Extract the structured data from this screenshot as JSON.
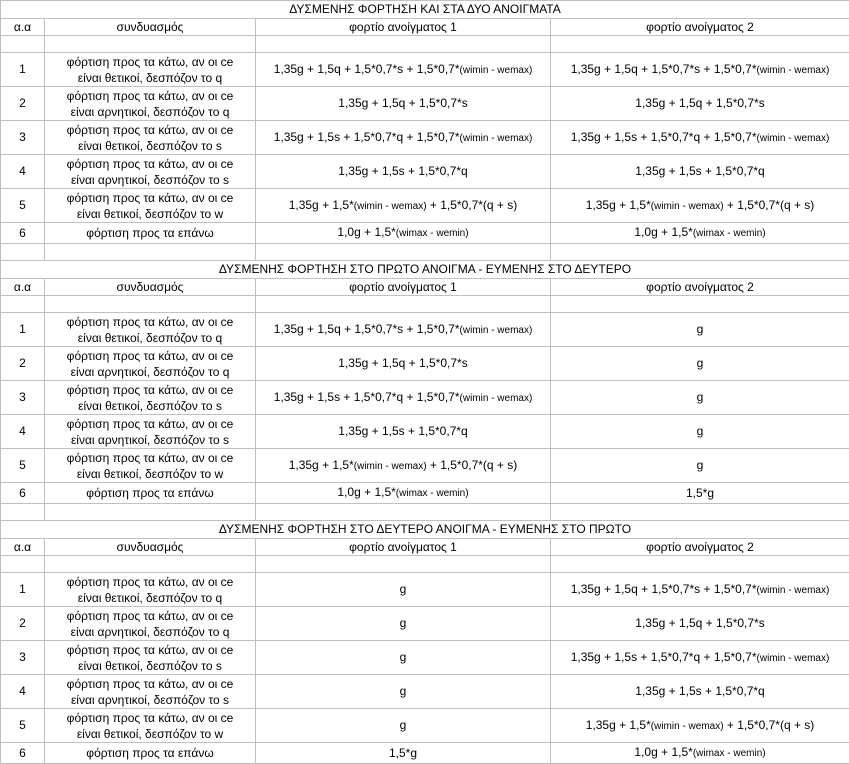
{
  "sections": [
    {
      "title": "ΔΥΣΜΕΝΗΣ ΦΟΡΤΗΣΗ ΚΑΙ ΣΤΑ ΔΥΟ ΑΝΟΙΓΜΑΤΑ",
      "headers": [
        "α.α",
        "συνδυασμός",
        "φορτίο ανοίγματος 1",
        "φορτίο ανοίγματος 2"
      ],
      "rows": [
        {
          "n": "1",
          "desc": "φόρτιση προς τα κάτω, αν οι ce\nείναι θετικοί, δεσπόζον το q",
          "f1": [
            {
              "t": "1,35g + 1,5q + 1,5*0,7*s + 1,5*0,7*"
            },
            {
              "t": "(wimin - wemax)",
              "small": true
            }
          ],
          "f2": [
            {
              "t": "1,35g + 1,5q + 1,5*0,7*s + 1,5*0,7*"
            },
            {
              "t": "(wimin - wemax)",
              "small": true
            }
          ]
        },
        {
          "n": "2",
          "desc": "φόρτιση προς τα κάτω, αν οι ce\nείναι αρνητικοί, δεσπόζον το q",
          "f1": [
            {
              "t": "1,35g + 1,5q + 1,5*0,7*s"
            }
          ],
          "f2": [
            {
              "t": "1,35g + 1,5q + 1,5*0,7*s"
            }
          ]
        },
        {
          "n": "3",
          "desc": "φόρτιση προς τα κάτω, αν οι ce\nείναι θετικοί, δεσπόζον το s",
          "f1": [
            {
              "t": "1,35g + 1,5s + 1,5*0,7*q + 1,5*0,7*"
            },
            {
              "t": "(wimin - wemax)",
              "small": true
            }
          ],
          "f2": [
            {
              "t": "1,35g + 1,5s + 1,5*0,7*q + 1,5*0,7*"
            },
            {
              "t": "(wimin - wemax)",
              "small": true
            }
          ]
        },
        {
          "n": "4",
          "desc": "φόρτιση προς τα κάτω, αν οι ce\nείναι αρνητικοί, δεσπόζον το s",
          "f1": [
            {
              "t": "1,35g + 1,5s + 1,5*0,7*q"
            }
          ],
          "f2": [
            {
              "t": "1,35g + 1,5s + 1,5*0,7*q"
            }
          ]
        },
        {
          "n": "5",
          "desc": "φόρτιση προς τα κάτω, αν οι ce\nείναι θετικοί, δεσπόζον το w",
          "f1": [
            {
              "t": "1,35g + 1,5*"
            },
            {
              "t": "(wimin - wemax)",
              "small": true
            },
            {
              "t": " + 1,5*0,7*(q + s)"
            }
          ],
          "f2": [
            {
              "t": "1,35g + 1,5*"
            },
            {
              "t": "(wimin - wemax)",
              "small": true
            },
            {
              "t": " + 1,5*0,7*(q + s)"
            }
          ]
        },
        {
          "n": "6",
          "desc": "φόρτιση προς τα επάνω",
          "f1": [
            {
              "t": "1,0g + 1,5*"
            },
            {
              "t": "(wimax - wemin)",
              "small": true
            }
          ],
          "f2": [
            {
              "t": "1,0g + 1,5*"
            },
            {
              "t": "(wimax - wemin)",
              "small": true
            }
          ]
        }
      ]
    },
    {
      "title": "ΔΥΣΜΕΝΗΣ ΦΟΡΤΗΣΗ ΣΤΟ ΠΡΩΤΟ ΑΝΟΙΓΜΑ - ΕΥΜΕΝΗΣ ΣΤΟ ΔΕΥΤΕΡΟ",
      "headers": [
        "α.α",
        "συνδυασμός",
        "φορτίο ανοίγματος 1",
        "φορτίο ανοίγματος 2"
      ],
      "rows": [
        {
          "n": "1",
          "desc": "φόρτιση προς τα κάτω, αν οι ce\nείναι θετικοί, δεσπόζον το q",
          "f1": [
            {
              "t": "1,35g + 1,5q + 1,5*0,7*s + 1,5*0,7*"
            },
            {
              "t": "(wimin - wemax)",
              "small": true
            }
          ],
          "f2": [
            {
              "t": "g"
            }
          ]
        },
        {
          "n": "2",
          "desc": "φόρτιση προς τα κάτω, αν οι ce\nείναι αρνητικοί, δεσπόζον το q",
          "f1": [
            {
              "t": "1,35g + 1,5q + 1,5*0,7*s"
            }
          ],
          "f2": [
            {
              "t": "g"
            }
          ]
        },
        {
          "n": "3",
          "desc": "φόρτιση προς τα κάτω, αν οι ce\nείναι θετικοί, δεσπόζον το s",
          "f1": [
            {
              "t": "1,35g + 1,5s + 1,5*0,7*q + 1,5*0,7*"
            },
            {
              "t": "(wimin - wemax)",
              "small": true
            }
          ],
          "f2": [
            {
              "t": "g"
            }
          ]
        },
        {
          "n": "4",
          "desc": "φόρτιση προς τα κάτω, αν οι ce\nείναι αρνητικοί, δεσπόζον το s",
          "f1": [
            {
              "t": "1,35g + 1,5s + 1,5*0,7*q"
            }
          ],
          "f2": [
            {
              "t": "g"
            }
          ]
        },
        {
          "n": "5",
          "desc": "φόρτιση προς τα κάτω, αν οι ce\nείναι θετικοί, δεσπόζον το w",
          "f1": [
            {
              "t": "1,35g + 1,5*"
            },
            {
              "t": "(wimin - wemax)",
              "small": true
            },
            {
              "t": " + 1,5*0,7*(q + s)"
            }
          ],
          "f2": [
            {
              "t": "g"
            }
          ]
        },
        {
          "n": "6",
          "desc": "φόρτιση προς τα επάνω",
          "f1": [
            {
              "t": "1,0g + 1,5*"
            },
            {
              "t": "(wimax - wemin)",
              "small": true
            }
          ],
          "f2": [
            {
              "t": "1,5*g"
            }
          ]
        }
      ]
    },
    {
      "title": "ΔΥΣΜΕΝΗΣ ΦΟΡΤΗΣΗ ΣΤΟ ΔΕΥΤΕΡΟ ΑΝΟΙΓΜΑ - ΕΥΜΕΝΗΣ ΣΤΟ ΠΡΩΤΟ",
      "headers": [
        "α.α",
        "συνδυασμός",
        "φορτίο ανοίγματος 1",
        "φορτίο ανοίγματος 2"
      ],
      "rows": [
        {
          "n": "1",
          "desc": "φόρτιση προς τα κάτω, αν οι ce\nείναι θετικοί, δεσπόζον το q",
          "f1": [
            {
              "t": "g"
            }
          ],
          "f2": [
            {
              "t": "1,35g + 1,5q + 1,5*0,7*s + 1,5*0,7*"
            },
            {
              "t": "(wimin - wemax)",
              "small": true
            }
          ]
        },
        {
          "n": "2",
          "desc": "φόρτιση προς τα κάτω, αν οι ce\nείναι αρνητικοί, δεσπόζον το q",
          "f1": [
            {
              "t": "g"
            }
          ],
          "f2": [
            {
              "t": "1,35g + 1,5q + 1,5*0,7*s"
            }
          ]
        },
        {
          "n": "3",
          "desc": "φόρτιση προς τα κάτω, αν οι ce\nείναι θετικοί, δεσπόζον το s",
          "f1": [
            {
              "t": "g"
            }
          ],
          "f2": [
            {
              "t": "1,35g + 1,5s + 1,5*0,7*q + 1,5*0,7*"
            },
            {
              "t": "(wimin - wemax)",
              "small": true
            }
          ]
        },
        {
          "n": "4",
          "desc": "φόρτιση προς τα κάτω, αν οι ce\nείναι αρνητικοί, δεσπόζον το s",
          "f1": [
            {
              "t": "g"
            }
          ],
          "f2": [
            {
              "t": "1,35g + 1,5s + 1,5*0,7*q"
            }
          ]
        },
        {
          "n": "5",
          "desc": "φόρτιση προς τα κάτω, αν οι ce\nείναι θετικοί, δεσπόζον το w",
          "f1": [
            {
              "t": "g"
            }
          ],
          "f2": [
            {
              "t": "1,35g + 1,5*"
            },
            {
              "t": "(wimin - wemax)",
              "small": true
            },
            {
              "t": " + 1,5*0,7*(q + s)"
            }
          ]
        },
        {
          "n": "6",
          "desc": "φόρτιση προς τα επάνω",
          "f1": [
            {
              "t": "1,5*g"
            }
          ],
          "f2": [
            {
              "t": "1,0g + 1,5*"
            },
            {
              "t": "(wimax - wemin)",
              "small": true
            }
          ]
        }
      ]
    }
  ]
}
